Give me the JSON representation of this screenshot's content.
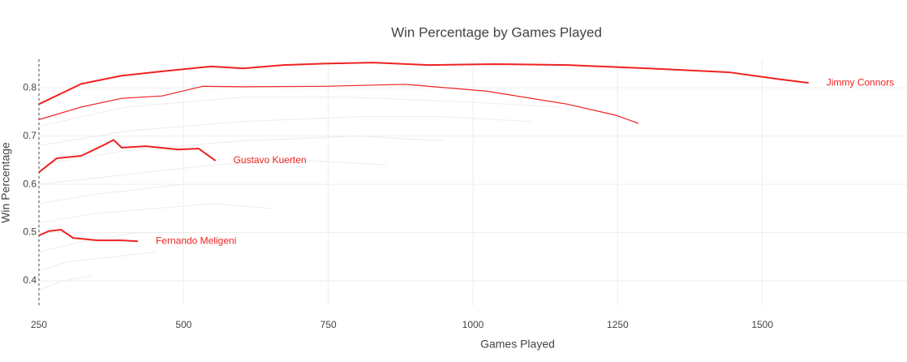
{
  "chart_data": {
    "type": "line",
    "title": "Win Percentage by Games Played",
    "x_label": "Games Played",
    "y_label": "Win Percentage",
    "xlim": [
      250,
      1750
    ],
    "ylim": [
      0.348,
      0.859
    ],
    "xticks": [
      250,
      500,
      750,
      1000,
      1250,
      1500
    ],
    "yticks": [
      0.4,
      0.5,
      0.6,
      0.7,
      0.8
    ],
    "grid": true,
    "series": [
      {
        "color": "#ececec",
        "line_width": 1,
        "x": [
          250,
          400,
          600,
          800,
          1000,
          1150
        ],
        "values": [
          0.72,
          0.76,
          0.78,
          0.78,
          0.77,
          0.76
        ]
      },
      {
        "color": "#ececec",
        "line_width": 1,
        "x": [
          250,
          400,
          600,
          800,
          950,
          1100
        ],
        "values": [
          0.68,
          0.71,
          0.73,
          0.74,
          0.74,
          0.73
        ]
      },
      {
        "color": "#ececec",
        "line_width": 1,
        "x": [
          250,
          400,
          600,
          800,
          950
        ],
        "values": [
          0.64,
          0.67,
          0.69,
          0.7,
          0.69
        ]
      },
      {
        "color": "#ececec",
        "line_width": 1,
        "x": [
          250,
          400,
          550,
          700,
          850
        ],
        "values": [
          0.6,
          0.62,
          0.64,
          0.65,
          0.64
        ]
      },
      {
        "color": "#ececec",
        "line_width": 1,
        "x": [
          250,
          350,
          500,
          650,
          750
        ],
        "values": [
          0.56,
          0.58,
          0.6,
          0.6,
          0.6
        ]
      },
      {
        "color": "#ececec",
        "line_width": 1,
        "x": [
          250,
          350,
          450,
          550,
          650
        ],
        "values": [
          0.52,
          0.54,
          0.55,
          0.56,
          0.55
        ]
      },
      {
        "color": "#ececec",
        "line_width": 1,
        "x": [
          250,
          320,
          420,
          520
        ],
        "values": [
          0.46,
          0.48,
          0.5,
          0.5
        ]
      },
      {
        "color": "#ececec",
        "line_width": 1,
        "x": [
          250,
          300,
          380,
          450
        ],
        "values": [
          0.42,
          0.44,
          0.45,
          0.46
        ]
      },
      {
        "color": "#ececec",
        "line_width": 1,
        "x": [
          250,
          290,
          340
        ],
        "values": [
          0.38,
          0.4,
          0.41
        ]
      },
      {
        "name": "Jimmy Connors",
        "color": "#ee2222",
        "line_width": 2,
        "x": [
          250,
          323,
          393,
          463,
          547,
          603,
          673,
          743,
          827,
          925,
          1037,
          1163,
          1303,
          1443,
          1527,
          1580
        ],
        "values": [
          0.766,
          0.808,
          0.825,
          0.834,
          0.844,
          0.84,
          0.847,
          0.85,
          0.852,
          0.847,
          0.849,
          0.847,
          0.84,
          0.832,
          0.818,
          0.81
        ]
      },
      {
        "color": "#ee2222",
        "line_width": 1.2,
        "x": [
          250,
          323,
          393,
          463,
          533,
          603,
          743,
          883,
          1023,
          1163,
          1247,
          1286
        ],
        "values": [
          0.734,
          0.76,
          0.778,
          0.783,
          0.803,
          0.802,
          0.803,
          0.807,
          0.793,
          0.766,
          0.743,
          0.726
        ]
      },
      {
        "name": "Gustavo Kuerten",
        "color": "#ee2222",
        "line_width": 2,
        "x": [
          250,
          281,
          323,
          358,
          379,
          393,
          435,
          491,
          526,
          555
        ],
        "values": [
          0.625,
          0.654,
          0.659,
          0.679,
          0.692,
          0.676,
          0.679,
          0.672,
          0.674,
          0.649
        ]
      },
      {
        "name": "Fernando Meligeni",
        "color": "#ee2222",
        "line_width": 2,
        "x": [
          250,
          267,
          288,
          309,
          351,
          393,
          421
        ],
        "values": [
          0.494,
          0.503,
          0.506,
          0.489,
          0.484,
          0.484,
          0.482
        ]
      }
    ]
  }
}
